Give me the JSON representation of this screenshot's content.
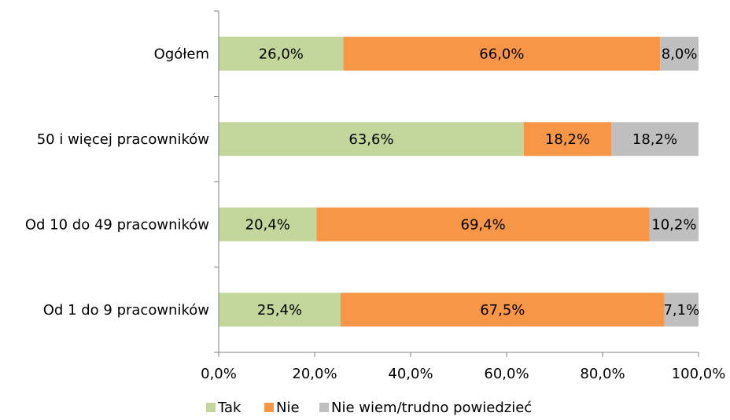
{
  "chart_data": {
    "type": "bar",
    "orientation": "horizontal",
    "stacked": true,
    "title": "",
    "xlabel": "",
    "ylabel": "",
    "xlim": [
      0,
      100
    ],
    "x_ticks": [
      "0,0%",
      "20,0%",
      "40,0%",
      "60,0%",
      "80,0%",
      "100,0%"
    ],
    "grid": false,
    "legend_position": "bottom",
    "categories": [
      "Ogółem",
      "50 i więcej pracowników",
      "Od 10 do 49 pracowników",
      "Od 1 do 9 pracowników"
    ],
    "series": [
      {
        "name": "Tak",
        "color": "#c3d69b",
        "values": [
          26.0,
          63.6,
          20.4,
          25.4
        ],
        "labels": [
          "26,0%",
          "63,6%",
          "20,4%",
          "25,4%"
        ]
      },
      {
        "name": "Nie",
        "color": "#f79646",
        "values": [
          66.0,
          18.2,
          69.4,
          67.5
        ],
        "labels": [
          "66,0%",
          "18,2%",
          "69,4%",
          "67,5%"
        ]
      },
      {
        "name": "Nie wiem/trudno powiedzieć",
        "color": "#bfbfbf",
        "values": [
          8.0,
          18.2,
          10.2,
          7.1
        ],
        "labels": [
          "8,0%",
          "18,2%",
          "10,2%",
          "7,1%"
        ]
      }
    ]
  }
}
